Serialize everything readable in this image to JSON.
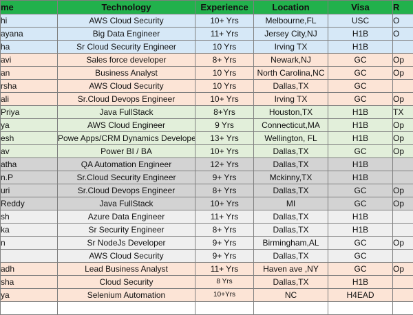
{
  "headers": [
    "me",
    "Technology",
    "Experience",
    "Location",
    "Visa",
    "R"
  ],
  "rows": [
    {
      "color": "blue",
      "name": "hi",
      "tech": "AWS Cloud Security",
      "exp": "10+ Yrs",
      "loc": "Melbourne,FL",
      "visa": "USC",
      "extra": "O"
    },
    {
      "color": "blue",
      "name": "ayana",
      "tech": "Big Data Engineer",
      "exp": "11+ Yrs",
      "loc": "Jersey City,NJ",
      "visa": "H1B",
      "extra": "O"
    },
    {
      "color": "blue",
      "name": "ha",
      "tech": "Sr Cloud Security Engineer",
      "exp": "10 Yrs",
      "loc": "Irving TX",
      "visa": "H1B",
      "extra": ""
    },
    {
      "color": "peach",
      "name": "avi",
      "tech": "Sales force developer",
      "exp": "8+ Yrs",
      "loc": "Newark,NJ",
      "visa": "GC",
      "extra": "Op"
    },
    {
      "color": "peach",
      "name": "an",
      "tech": "Business Analyst",
      "exp": "10 Yrs",
      "loc": "North Carolina,NC",
      "visa": "GC",
      "extra": "Op"
    },
    {
      "color": "peach",
      "name": "rsha",
      "tech": "AWS Cloud Security",
      "exp": "10 Yrs",
      "loc": "Dallas,TX",
      "visa": "GC",
      "extra": ""
    },
    {
      "color": "peach",
      "name": "ali",
      "tech": "Sr.Cloud Devops Engineer",
      "exp": "10+ Yrs",
      "loc": "Irving TX",
      "visa": "GC",
      "extra": "Op"
    },
    {
      "color": "green",
      "name": "Priya",
      "tech": "Java FullStack",
      "exp": "8+Yrs",
      "loc": "Houston,TX",
      "visa": "H1B",
      "extra": "TX"
    },
    {
      "color": "green",
      "name": "ya",
      "tech": "AWS Cloud Engineer",
      "exp": "9 Yrs",
      "loc": "Connecticut,MA",
      "visa": "H1B",
      "extra": "Op"
    },
    {
      "color": "green",
      "name": "esh",
      "tech": "Powe Apps/CRM Dynamics Developer",
      "exp": "13+ Yrs",
      "loc": "Wellington, FL",
      "visa": "H1B",
      "extra": "Op"
    },
    {
      "color": "green",
      "name": "av",
      "tech": "Power BI / BA",
      "exp": "10+ Yrs",
      "loc": "Dallas,TX",
      "visa": "GC",
      "extra": "Op"
    },
    {
      "color": "gray",
      "name": "atha",
      "tech": "QA Automation Engineer",
      "exp": "12+ Yrs",
      "loc": "Dallas,TX",
      "visa": "H1B",
      "extra": ""
    },
    {
      "color": "gray",
      "name": "n.P",
      "tech": "Sr.Cloud Security Engineer",
      "exp": "9+ Yrs",
      "loc": "Mckinny,TX",
      "visa": "H1B",
      "extra": ""
    },
    {
      "color": "gray",
      "name": "uri",
      "tech": "Sr.Cloud Devops Engineer",
      "exp": "8+ Yrs",
      "loc": "Dallas,TX",
      "visa": "GC",
      "extra": "Op"
    },
    {
      "color": "gray",
      "name": " Reddy",
      "tech": "Java FullStack",
      "exp": "10+ Yrs",
      "loc": "MI",
      "visa": "GC",
      "extra": "Op"
    },
    {
      "color": "light",
      "name": "sh",
      "tech": "Azure Data Engineer",
      "exp": "11+ Yrs",
      "loc": "Dallas,TX",
      "visa": "H1B",
      "extra": ""
    },
    {
      "color": "light",
      "name": "ka",
      "tech": "Sr Security Engineer",
      "exp": "8+ Yrs",
      "loc": "Dallas,TX",
      "visa": "H1B",
      "extra": ""
    },
    {
      "color": "light",
      "name": "n",
      "tech": "Sr NodeJs Developer",
      "exp": "9+ Yrs",
      "loc": "Birmingham,AL",
      "visa": "GC",
      "extra": "Op"
    },
    {
      "color": "light",
      "name": "",
      "tech": "AWS Cloud Security",
      "exp": "9+ Yrs",
      "loc": "Dallas,TX",
      "visa": "GC",
      "extra": ""
    },
    {
      "color": "peach",
      "name": "adh",
      "tech": "Lead Business Analyst",
      "exp": "11+ Yrs",
      "loc": "Haven ave ,NY",
      "visa": "GC",
      "extra": "Op"
    },
    {
      "color": "peach",
      "name": "sha",
      "tech": "Cloud Security",
      "exp": "8 Yrs",
      "loc": "Dallas,TX",
      "visa": "H1B",
      "extra": "",
      "small": true
    },
    {
      "color": "peach",
      "name": "ya",
      "tech": "Selenium Automation",
      "exp": "10+Yrs",
      "loc": "NC",
      "visa": "H4EAD",
      "extra": "",
      "small": true
    },
    {
      "color": "white",
      "name": "",
      "tech": "",
      "exp": "",
      "loc": "",
      "visa": "",
      "extra": ""
    }
  ]
}
